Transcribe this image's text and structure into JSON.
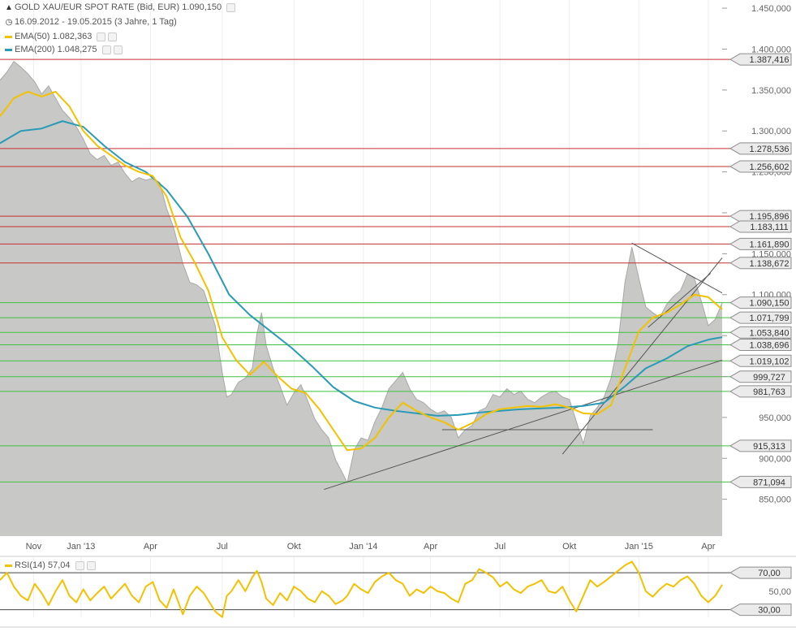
{
  "header": {
    "instrument": "GOLD XAU/EUR SPOT RATE (Bid, EUR)",
    "last_value": "1.090,150",
    "period": "16.09.2012 - 19.05.2015 (3 Jahre, 1 Tag)",
    "instrument_icon": "mountain-chart-icon",
    "period_icon": "clock-icon"
  },
  "legend": {
    "ema50_label": "EMA(50)",
    "ema50_value": "1.082,363",
    "ema50_color": "#f2c200",
    "ema200_label": "EMA(200)",
    "ema200_value": "1.048,275",
    "ema200_color": "#2a9bb7"
  },
  "rsi_legend": {
    "label": "RSI(14)",
    "value": "57,04",
    "color": "#f2c200"
  },
  "chart_data": {
    "type": "area",
    "x_ticks": [
      "Nov",
      "Jan '13",
      "Apr",
      "Jul",
      "Okt",
      "Jan '14",
      "Apr",
      "Jul",
      "Okt",
      "Jan '15",
      "Apr"
    ],
    "y_ticks": [
      "1.450,000",
      "1.400,000",
      "1.350,000",
      "1.300,000",
      "1.250,000",
      "1.200,000",
      "1.150,000",
      "1.100,000",
      "1.050,000",
      "1.000,000",
      "950,000",
      "900,000",
      "850,000"
    ],
    "ylim": [
      805,
      1460
    ],
    "xlim": [
      0,
      31.2
    ],
    "price_series": [
      [
        0,
        1362
      ],
      [
        0.3,
        1372
      ],
      [
        0.6,
        1385
      ],
      [
        0.9,
        1378
      ],
      [
        1.2,
        1370
      ],
      [
        1.5,
        1360
      ],
      [
        1.8,
        1345
      ],
      [
        2.1,
        1355
      ],
      [
        2.4,
        1340
      ],
      [
        2.7,
        1325
      ],
      [
        3.0,
        1316
      ],
      [
        3.3,
        1305
      ],
      [
        3.6,
        1290
      ],
      [
        3.9,
        1272
      ],
      [
        4.2,
        1265
      ],
      [
        4.5,
        1270
      ],
      [
        4.8,
        1258
      ],
      [
        5.1,
        1262
      ],
      [
        5.4,
        1248
      ],
      [
        5.7,
        1238
      ],
      [
        6.0,
        1243
      ],
      [
        6.3,
        1240
      ],
      [
        6.6,
        1242
      ],
      [
        6.9,
        1237
      ],
      [
        7.2,
        1205
      ],
      [
        7.5,
        1182
      ],
      [
        7.9,
        1138
      ],
      [
        8.2,
        1115
      ],
      [
        8.5,
        1112
      ],
      [
        8.8,
        1105
      ],
      [
        9.0,
        1088
      ],
      [
        9.3,
        1062
      ],
      [
        9.6,
        1005
      ],
      [
        9.8,
        975
      ],
      [
        10.0,
        978
      ],
      [
        10.3,
        993
      ],
      [
        10.6,
        998
      ],
      [
        10.9,
        1010
      ],
      [
        11.1,
        1052
      ],
      [
        11.3,
        1078
      ],
      [
        11.5,
        1038
      ],
      [
        11.8,
        1010
      ],
      [
        12.1,
        988
      ],
      [
        12.4,
        965
      ],
      [
        12.7,
        980
      ],
      [
        13.0,
        990
      ],
      [
        13.3,
        970
      ],
      [
        13.6,
        948
      ],
      [
        13.9,
        935
      ],
      [
        14.2,
        925
      ],
      [
        14.5,
        898
      ],
      [
        14.8,
        882
      ],
      [
        15.0,
        870
      ],
      [
        15.3,
        910
      ],
      [
        15.6,
        925
      ],
      [
        15.9,
        922
      ],
      [
        16.2,
        945
      ],
      [
        16.5,
        962
      ],
      [
        16.8,
        985
      ],
      [
        17.1,
        995
      ],
      [
        17.4,
        1005
      ],
      [
        17.7,
        985
      ],
      [
        18.0,
        972
      ],
      [
        18.3,
        968
      ],
      [
        18.6,
        960
      ],
      [
        18.9,
        955
      ],
      [
        19.2,
        958
      ],
      [
        19.5,
        950
      ],
      [
        19.8,
        925
      ],
      [
        20.1,
        935
      ],
      [
        20.4,
        940
      ],
      [
        20.7,
        958
      ],
      [
        21.0,
        962
      ],
      [
        21.3,
        978
      ],
      [
        21.6,
        975
      ],
      [
        21.9,
        985
      ],
      [
        22.2,
        978
      ],
      [
        22.5,
        982
      ],
      [
        22.8,
        972
      ],
      [
        23.1,
        968
      ],
      [
        23.4,
        975
      ],
      [
        23.7,
        980
      ],
      [
        24.0,
        982
      ],
      [
        24.3,
        975
      ],
      [
        24.6,
        972
      ],
      [
        24.9,
        945
      ],
      [
        25.2,
        918
      ],
      [
        25.5,
        952
      ],
      [
        25.8,
        962
      ],
      [
        26.1,
        975
      ],
      [
        26.4,
        998
      ],
      [
        26.7,
        1040
      ],
      [
        27.0,
        1115
      ],
      [
        27.3,
        1158
      ],
      [
        27.6,
        1120
      ],
      [
        27.9,
        1085
      ],
      [
        28.2,
        1078
      ],
      [
        28.5,
        1072
      ],
      [
        28.8,
        1088
      ],
      [
        29.1,
        1098
      ],
      [
        29.4,
        1105
      ],
      [
        29.7,
        1125
      ],
      [
        30.0,
        1120
      ],
      [
        30.3,
        1092
      ],
      [
        30.6,
        1062
      ],
      [
        30.9,
        1070
      ],
      [
        31.2,
        1090
      ]
    ],
    "ema50": [
      [
        0,
        1318
      ],
      [
        0.6,
        1340
      ],
      [
        1.2,
        1348
      ],
      [
        1.8,
        1342
      ],
      [
        2.4,
        1348
      ],
      [
        3.0,
        1330
      ],
      [
        3.6,
        1300
      ],
      [
        4.2,
        1282
      ],
      [
        4.8,
        1270
      ],
      [
        5.4,
        1258
      ],
      [
        6.0,
        1250
      ],
      [
        6.6,
        1245
      ],
      [
        7.2,
        1220
      ],
      [
        7.8,
        1170
      ],
      [
        8.4,
        1140
      ],
      [
        9.0,
        1105
      ],
      [
        9.6,
        1048
      ],
      [
        10.2,
        1020
      ],
      [
        10.8,
        1002
      ],
      [
        11.4,
        1018
      ],
      [
        12.0,
        1000
      ],
      [
        12.6,
        985
      ],
      [
        13.2,
        980
      ],
      [
        13.8,
        960
      ],
      [
        14.4,
        935
      ],
      [
        15.0,
        910
      ],
      [
        15.6,
        912
      ],
      [
        16.2,
        925
      ],
      [
        16.8,
        950
      ],
      [
        17.4,
        968
      ],
      [
        18.0,
        958
      ],
      [
        18.6,
        950
      ],
      [
        19.2,
        944
      ],
      [
        19.8,
        935
      ],
      [
        20.4,
        943
      ],
      [
        21.0,
        954
      ],
      [
        21.6,
        960
      ],
      [
        22.2,
        962
      ],
      [
        22.8,
        964
      ],
      [
        23.4,
        963
      ],
      [
        24.0,
        966
      ],
      [
        24.6,
        962
      ],
      [
        25.2,
        955
      ],
      [
        25.8,
        954
      ],
      [
        26.4,
        965
      ],
      [
        27.0,
        1010
      ],
      [
        27.6,
        1055
      ],
      [
        28.2,
        1072
      ],
      [
        28.8,
        1078
      ],
      [
        29.4,
        1088
      ],
      [
        30.0,
        1100
      ],
      [
        30.6,
        1097
      ],
      [
        31.2,
        1082
      ]
    ],
    "ema200": [
      [
        0,
        1285
      ],
      [
        0.9,
        1300
      ],
      [
        1.8,
        1303
      ],
      [
        2.7,
        1312
      ],
      [
        3.6,
        1305
      ],
      [
        4.5,
        1282
      ],
      [
        5.4,
        1262
      ],
      [
        6.3,
        1250
      ],
      [
        7.2,
        1228
      ],
      [
        8.1,
        1195
      ],
      [
        9.0,
        1150
      ],
      [
        9.9,
        1100
      ],
      [
        10.8,
        1075
      ],
      [
        11.7,
        1055
      ],
      [
        12.6,
        1035
      ],
      [
        13.5,
        1012
      ],
      [
        14.4,
        987
      ],
      [
        15.3,
        970
      ],
      [
        16.2,
        962
      ],
      [
        17.1,
        958
      ],
      [
        18.0,
        955
      ],
      [
        18.9,
        952
      ],
      [
        19.8,
        953
      ],
      [
        20.7,
        956
      ],
      [
        21.6,
        958
      ],
      [
        22.5,
        960
      ],
      [
        23.4,
        961
      ],
      [
        24.3,
        962
      ],
      [
        25.2,
        964
      ],
      [
        26.1,
        968
      ],
      [
        27.0,
        988
      ],
      [
        27.9,
        1010
      ],
      [
        28.8,
        1022
      ],
      [
        29.7,
        1037
      ],
      [
        30.6,
        1045
      ],
      [
        31.2,
        1048
      ]
    ],
    "horizontal_levels": [
      {
        "value": "1.387,416",
        "y": 1387.416,
        "color": "#c62f2f"
      },
      {
        "value": "1.278,536",
        "y": 1278.536,
        "color": "#c62f2f"
      },
      {
        "value": "1.256,602",
        "y": 1256.602,
        "color": "#c62f2f"
      },
      {
        "value": "1.195,896",
        "y": 1195.896,
        "color": "#c62f2f"
      },
      {
        "value": "1.183,111",
        "y": 1183.111,
        "color": "#c62f2f"
      },
      {
        "value": "1.161,890",
        "y": 1161.89,
        "color": "#c62f2f"
      },
      {
        "value": "1.138,672",
        "y": 1138.672,
        "color": "#c62f2f"
      },
      {
        "value": "1.090,150",
        "y": 1090.15,
        "color": "#3ec23e"
      },
      {
        "value": "1.071,799",
        "y": 1071.799,
        "color": "#3ec23e"
      },
      {
        "value": "1.053,840",
        "y": 1053.84,
        "color": "#3ec23e"
      },
      {
        "value": "1.038,696",
        "y": 1038.696,
        "color": "#3ec23e"
      },
      {
        "value": "1.019,102",
        "y": 1019.102,
        "color": "#3ec23e"
      },
      {
        "value": "999,727",
        "y": 999.727,
        "color": "#3ec23e"
      },
      {
        "value": "981,763",
        "y": 981.763,
        "color": "#3ec23e"
      },
      {
        "value": "915,313",
        "y": 915.313,
        "color": "#3ec23e"
      },
      {
        "value": "871,094",
        "y": 871.094,
        "color": "#3ec23e"
      }
    ],
    "trendlines": [
      [
        [
          14.0,
          862
        ],
        [
          31.2,
          1020
        ]
      ],
      [
        [
          24.3,
          905
        ],
        [
          31.2,
          1145
        ]
      ],
      [
        [
          28.0,
          1060
        ],
        [
          30.7,
          1126
        ]
      ],
      [
        [
          27.3,
          1163
        ],
        [
          31.2,
          1102
        ]
      ],
      [
        [
          19.1,
          935
        ],
        [
          28.2,
          935
        ]
      ]
    ],
    "rsi": {
      "ylim": [
        20,
        85
      ],
      "ticks": [
        "70,00",
        "50,00",
        "30,00"
      ],
      "levels": [
        70,
        30
      ],
      "series": [
        [
          0,
          62
        ],
        [
          0.3,
          70
        ],
        [
          0.6,
          55
        ],
        [
          0.9,
          45
        ],
        [
          1.2,
          40
        ],
        [
          1.5,
          58
        ],
        [
          1.8,
          48
        ],
        [
          2.1,
          35
        ],
        [
          2.4,
          50
        ],
        [
          2.7,
          62
        ],
        [
          3.0,
          45
        ],
        [
          3.3,
          38
        ],
        [
          3.6,
          52
        ],
        [
          3.9,
          40
        ],
        [
          4.2,
          48
        ],
        [
          4.5,
          55
        ],
        [
          4.8,
          42
        ],
        [
          5.1,
          50
        ],
        [
          5.4,
          58
        ],
        [
          5.7,
          45
        ],
        [
          6.0,
          38
        ],
        [
          6.3,
          55
        ],
        [
          6.6,
          60
        ],
        [
          6.9,
          40
        ],
        [
          7.2,
          32
        ],
        [
          7.5,
          52
        ],
        [
          7.9,
          25
        ],
        [
          8.2,
          45
        ],
        [
          8.5,
          55
        ],
        [
          8.8,
          48
        ],
        [
          9.0,
          40
        ],
        [
          9.3,
          28
        ],
        [
          9.6,
          22
        ],
        [
          9.8,
          45
        ],
        [
          10.0,
          50
        ],
        [
          10.3,
          62
        ],
        [
          10.6,
          50
        ],
        [
          10.9,
          65
        ],
        [
          11.1,
          72
        ],
        [
          11.3,
          60
        ],
        [
          11.5,
          42
        ],
        [
          11.8,
          35
        ],
        [
          12.1,
          48
        ],
        [
          12.4,
          40
        ],
        [
          12.7,
          55
        ],
        [
          13.0,
          50
        ],
        [
          13.3,
          42
        ],
        [
          13.6,
          38
        ],
        [
          13.9,
          50
        ],
        [
          14.2,
          45
        ],
        [
          14.5,
          36
        ],
        [
          14.8,
          40
        ],
        [
          15.0,
          45
        ],
        [
          15.3,
          58
        ],
        [
          15.6,
          52
        ],
        [
          15.9,
          48
        ],
        [
          16.2,
          60
        ],
        [
          16.5,
          66
        ],
        [
          16.8,
          70
        ],
        [
          17.1,
          62
        ],
        [
          17.4,
          58
        ],
        [
          17.7,
          45
        ],
        [
          18.0,
          52
        ],
        [
          18.3,
          48
        ],
        [
          18.6,
          55
        ],
        [
          18.9,
          50
        ],
        [
          19.2,
          48
        ],
        [
          19.5,
          42
        ],
        [
          19.8,
          38
        ],
        [
          20.1,
          58
        ],
        [
          20.4,
          62
        ],
        [
          20.7,
          74
        ],
        [
          21.0,
          70
        ],
        [
          21.3,
          65
        ],
        [
          21.6,
          55
        ],
        [
          21.9,
          60
        ],
        [
          22.2,
          52
        ],
        [
          22.5,
          48
        ],
        [
          22.8,
          55
        ],
        [
          23.1,
          58
        ],
        [
          23.4,
          62
        ],
        [
          23.7,
          50
        ],
        [
          24.0,
          48
        ],
        [
          24.3,
          55
        ],
        [
          24.6,
          40
        ],
        [
          24.9,
          28
        ],
        [
          25.2,
          45
        ],
        [
          25.5,
          62
        ],
        [
          25.8,
          55
        ],
        [
          26.1,
          60
        ],
        [
          26.4,
          66
        ],
        [
          26.7,
          72
        ],
        [
          27.0,
          78
        ],
        [
          27.3,
          82
        ],
        [
          27.6,
          70
        ],
        [
          27.9,
          50
        ],
        [
          28.2,
          44
        ],
        [
          28.5,
          52
        ],
        [
          28.8,
          58
        ],
        [
          29.1,
          55
        ],
        [
          29.4,
          62
        ],
        [
          29.7,
          66
        ],
        [
          30.0,
          58
        ],
        [
          30.3,
          45
        ],
        [
          30.6,
          38
        ],
        [
          30.9,
          45
        ],
        [
          31.2,
          57
        ]
      ]
    }
  }
}
